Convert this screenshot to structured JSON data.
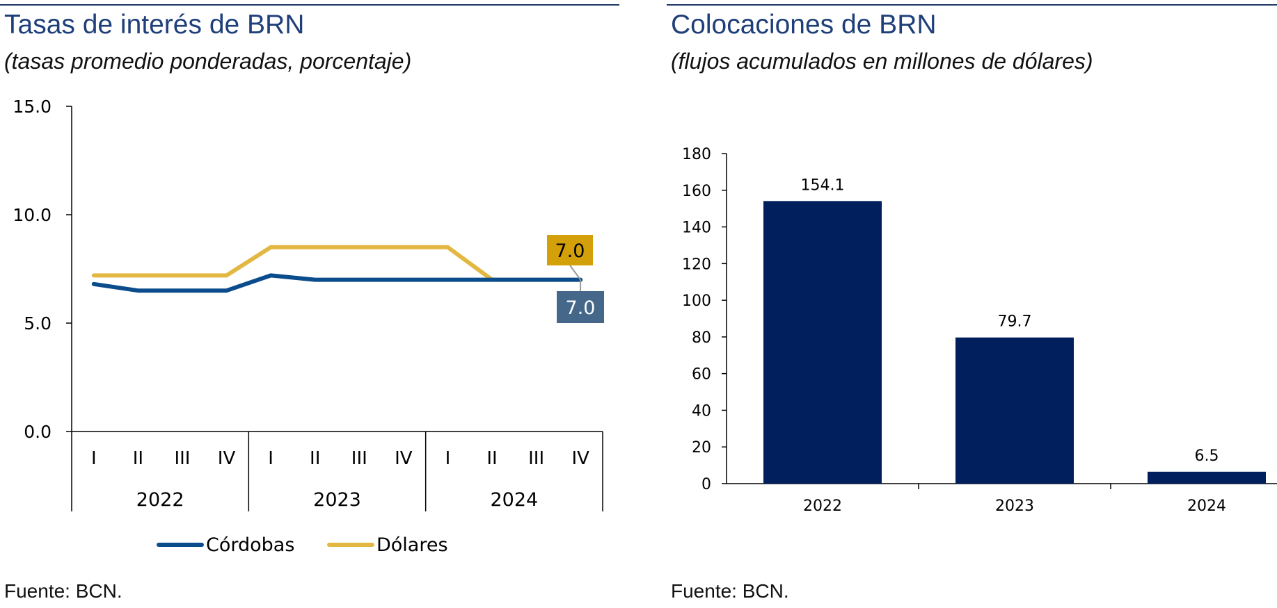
{
  "left": {
    "title": "Tasas de interés de BRN",
    "subtitle": "(tasas promedio ponderadas, porcentaje)",
    "source": "Fuente: BCN."
  },
  "right": {
    "title": "Colocaciones de BRN",
    "subtitle": "(flujos acumulados en millones de dólares)",
    "source": "Fuente: BCN."
  },
  "chart_data": [
    {
      "type": "line",
      "title": "Tasas de interés de BRN",
      "subtitle": "(tasas promedio ponderadas, porcentaje)",
      "categories": [
        "I",
        "II",
        "III",
        "IV",
        "I",
        "II",
        "III",
        "IV",
        "I",
        "II",
        "III",
        "IV"
      ],
      "category_groups": [
        {
          "label": "2022",
          "count": 4
        },
        {
          "label": "2023",
          "count": 4
        },
        {
          "label": "2024",
          "count": 4
        }
      ],
      "ylim": [
        0,
        15
      ],
      "yticks": [
        "0.0",
        "5.0",
        "10.0",
        "15.0"
      ],
      "legend_position": "bottom",
      "series": [
        {
          "name": "Córdobas",
          "color": "#0b4c8c",
          "values": [
            6.8,
            6.5,
            6.5,
            6.5,
            7.2,
            7.0,
            7.0,
            7.0,
            7.0,
            7.0,
            7.0,
            7.0
          ],
          "end_label": "7.0",
          "end_label_bg": "#44678a"
        },
        {
          "name": "Dólares",
          "color": "#e3b842",
          "values": [
            7.2,
            7.2,
            7.2,
            7.2,
            8.5,
            8.5,
            8.5,
            8.5,
            8.5,
            7.0,
            7.0,
            7.0
          ],
          "end_label": "7.0",
          "end_label_bg": "#d4a00a"
        }
      ]
    },
    {
      "type": "bar",
      "title": "Colocaciones de BRN",
      "subtitle": "(flujos acumulados en millones de dólares)",
      "categories": [
        "2022",
        "2023",
        "2024"
      ],
      "values": [
        154.1,
        79.7,
        6.5
      ],
      "data_labels": [
        "154.1",
        "79.7",
        "6.5"
      ],
      "ylim": [
        0,
        180
      ],
      "yticks": [
        "0",
        "20",
        "40",
        "60",
        "80",
        "100",
        "120",
        "140",
        "160",
        "180"
      ],
      "bar_color": "#001f5c"
    }
  ]
}
